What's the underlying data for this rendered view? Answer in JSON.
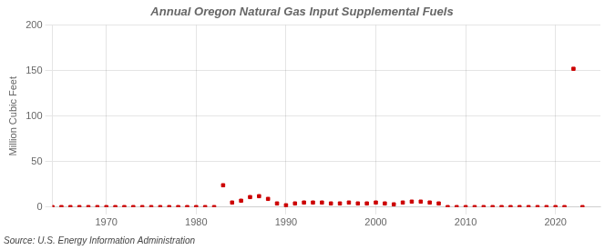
{
  "chart_data": {
    "type": "scatter",
    "title": "Annual Oregon Natural Gas Input Supplemental Fuels",
    "ylabel": "Million Cubic Feet",
    "source": "Source: U.S. Energy Information Administration",
    "x": [
      1964,
      1965,
      1966,
      1967,
      1968,
      1969,
      1970,
      1971,
      1972,
      1973,
      1974,
      1975,
      1976,
      1977,
      1978,
      1979,
      1980,
      1981,
      1982,
      1983,
      1984,
      1985,
      1986,
      1987,
      1988,
      1989,
      1990,
      1991,
      1992,
      1993,
      1994,
      1995,
      1996,
      1997,
      1998,
      1999,
      2000,
      2001,
      2002,
      2003,
      2004,
      2005,
      2006,
      2007,
      2008,
      2009,
      2010,
      2011,
      2012,
      2013,
      2014,
      2015,
      2016,
      2017,
      2018,
      2019,
      2020,
      2021,
      2022,
      2023
    ],
    "values": [
      0,
      0,
      0,
      0,
      0,
      0,
      0,
      0,
      0,
      0,
      0,
      0,
      0,
      0,
      0,
      0,
      0,
      0,
      0,
      24,
      5,
      7,
      11,
      12,
      9,
      4,
      2,
      4,
      5,
      5,
      5,
      4,
      4,
      5,
      4,
      4,
      5,
      4,
      3,
      5,
      6,
      6,
      5,
      4,
      0,
      0,
      0,
      0,
      0,
      0,
      0,
      0,
      0,
      0,
      0,
      0,
      0,
      0,
      152,
      0
    ],
    "color": "#cc0000",
    "marker": "square",
    "xlim": [
      1964,
      2025
    ],
    "xticks": [
      1970,
      1980,
      1990,
      2000,
      2010,
      2020
    ],
    "ylim": [
      0,
      200
    ],
    "yticks": [
      0,
      50,
      100,
      150,
      200
    ],
    "grid": true
  }
}
